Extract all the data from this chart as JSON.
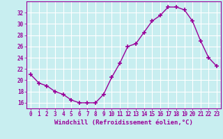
{
  "x": [
    0,
    1,
    2,
    3,
    4,
    5,
    6,
    7,
    8,
    9,
    10,
    11,
    12,
    13,
    14,
    15,
    16,
    17,
    18,
    19,
    20,
    21,
    22,
    23
  ],
  "y": [
    21,
    19.5,
    19,
    18,
    17.5,
    16.5,
    16,
    16,
    16,
    17.5,
    20.5,
    23,
    26,
    26.5,
    28.5,
    30.5,
    31.5,
    33,
    33,
    32.5,
    30.5,
    27,
    24,
    22.5
  ],
  "line_color": "#990099",
  "marker": "+",
  "marker_size": 4,
  "marker_lw": 1.2,
  "bg_color": "#c8eef0",
  "grid_color": "#ffffff",
  "xlabel": "Windchill (Refroidissement éolien,°C)",
  "xlabel_fontsize": 6.5,
  "tick_fontsize": 5.5,
  "ylim": [
    15,
    34
  ],
  "yticks": [
    16,
    18,
    20,
    22,
    24,
    26,
    28,
    30,
    32
  ],
  "xlim": [
    -0.5,
    23.5
  ],
  "xticks": [
    0,
    1,
    2,
    3,
    4,
    5,
    6,
    7,
    8,
    9,
    10,
    11,
    12,
    13,
    14,
    15,
    16,
    17,
    18,
    19,
    20,
    21,
    22,
    23
  ],
  "tick_color": "#990099",
  "axis_color": "#990099",
  "line_width": 1.0
}
